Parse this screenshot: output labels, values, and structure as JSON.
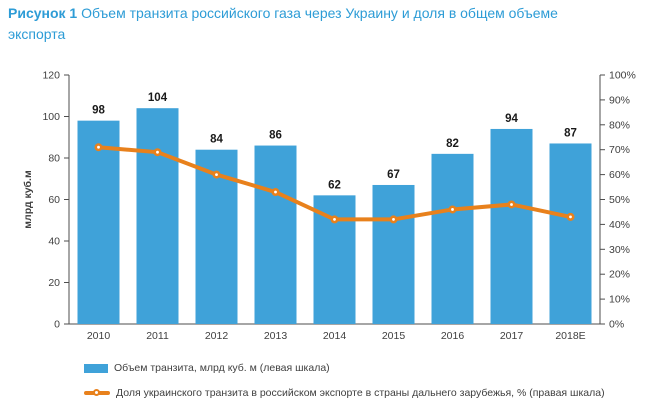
{
  "title": {
    "label": "Рисунок 1",
    "text": "Объем транзита российского газа через Украину и доля в общем объеме экспорта"
  },
  "chart_data": {
    "type": "bar",
    "subtype": "bar-and-line-combo",
    "categories": [
      "2010",
      "2011",
      "2012",
      "2013",
      "2014",
      "2015",
      "2016",
      "2017",
      "2018E"
    ],
    "series": [
      {
        "name": "Объем транзита, млрд куб. м (левая шкала)",
        "type": "bar",
        "axis": "left",
        "values": [
          98,
          104,
          84,
          86,
          62,
          67,
          82,
          94,
          87
        ]
      },
      {
        "name": "Доля украинского транзита в российском экспорте в страны дальнего зарубежья, % (правая шкала)",
        "type": "line",
        "axis": "right",
        "values": [
          71,
          69,
          60,
          53,
          42,
          42,
          46,
          48,
          43
        ]
      }
    ],
    "left_axis": {
      "label": "млрд куб.м",
      "min": 0,
      "max": 120,
      "ticks": [
        0,
        20,
        40,
        60,
        80,
        100,
        120
      ]
    },
    "right_axis": {
      "min": 0,
      "max": 100,
      "ticks": [
        0,
        10,
        20,
        30,
        40,
        50,
        60,
        70,
        80,
        90,
        100
      ],
      "suffix": "%"
    },
    "grid": false,
    "legend_position": "bottom-left",
    "colors": {
      "bar": "#3fa2d9",
      "line": "#e8811c",
      "title": "#2d9cd6",
      "axis": "#4d4d4d",
      "tick_text": "#404040",
      "value_label": "#1a1a1a"
    }
  },
  "legend": {
    "bars": "Объем транзита, млрд куб. м (левая шкала)",
    "line": "Доля украинского транзита в российском экспорте в страны дальнего зарубежья, % (правая шкала)"
  }
}
